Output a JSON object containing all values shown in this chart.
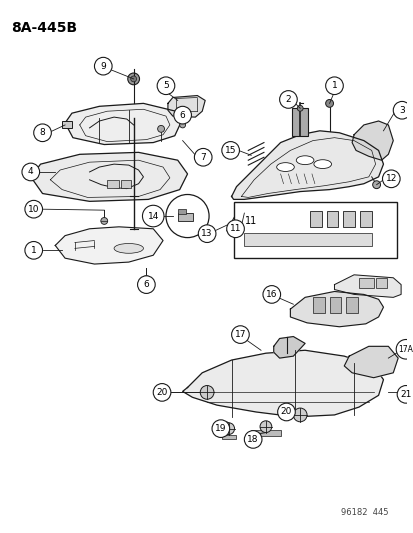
{
  "title": "8A-445B",
  "background_color": "#ffffff",
  "line_color": "#1a1a1a",
  "text_color": "#000000",
  "watermark": "96182  445",
  "fig_w": 4.14,
  "fig_h": 5.33,
  "dpi": 100
}
